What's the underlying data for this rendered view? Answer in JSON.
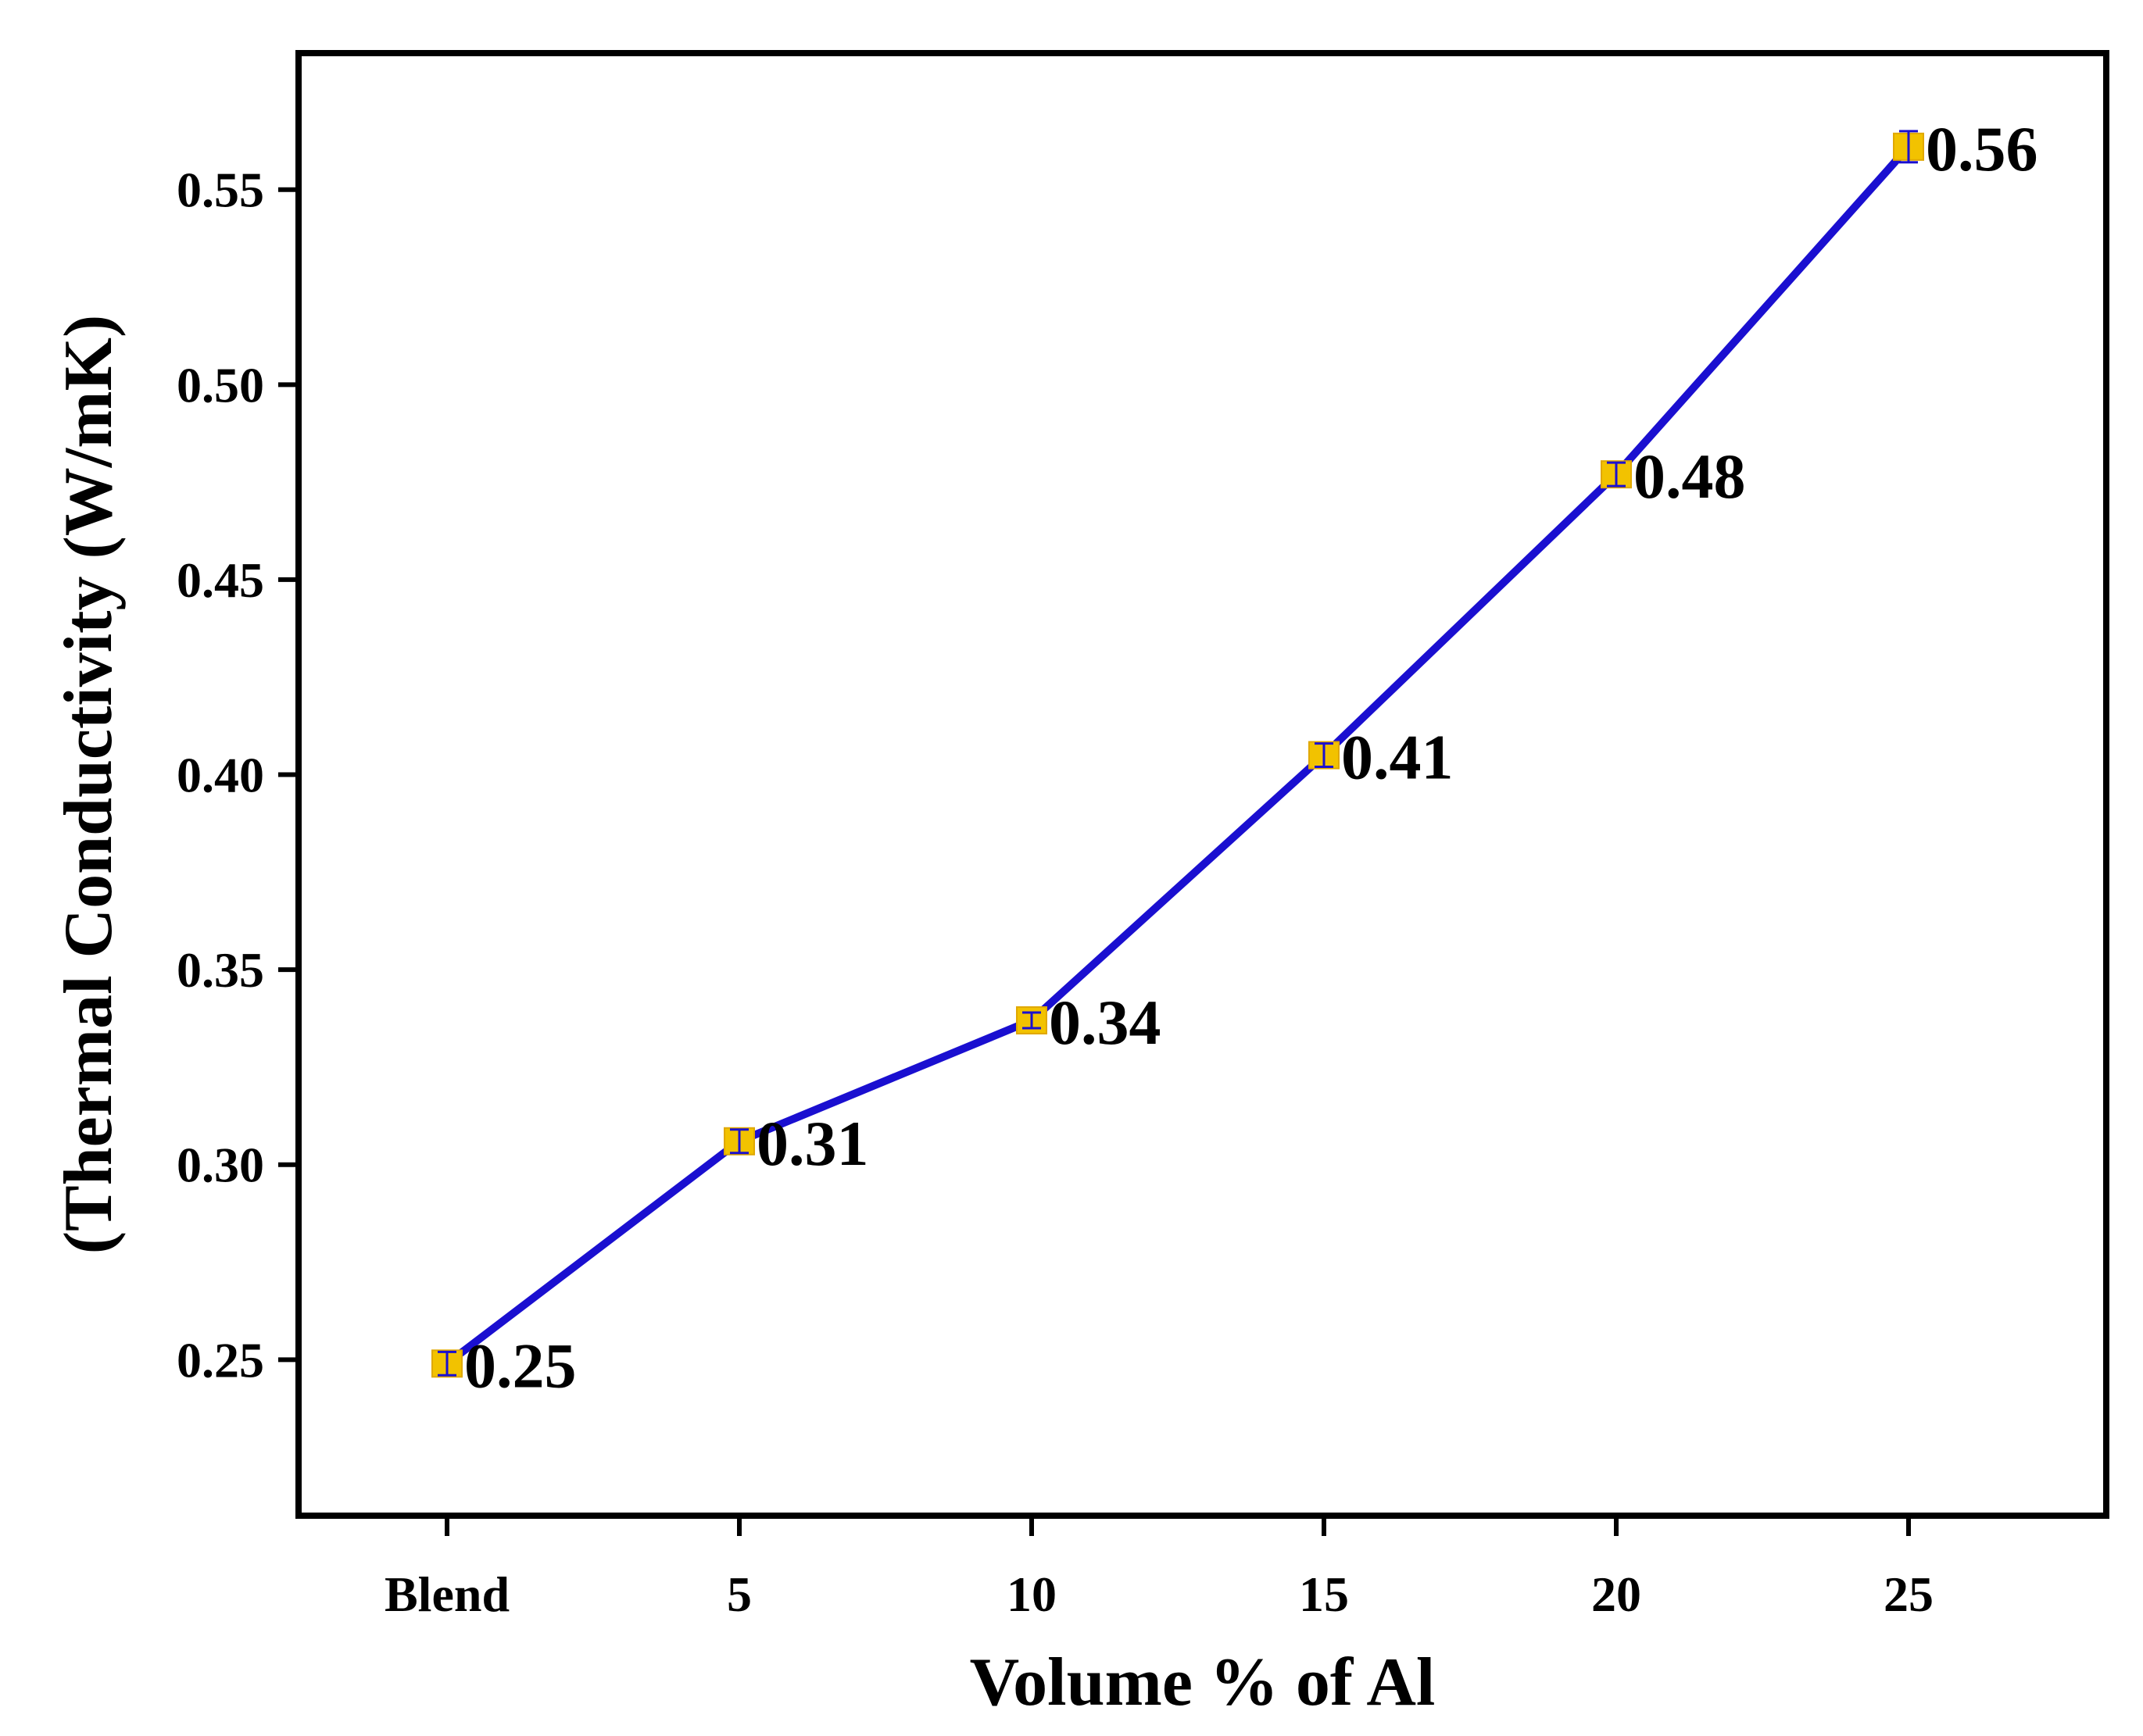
{
  "chart_data": {
    "type": "line",
    "title": "",
    "xlabel": "Volume % of Al",
    "ylabel": "(Thermal Conductivity (W/mK)",
    "categories": [
      "Blend",
      "5",
      "10",
      "15",
      "20",
      "25"
    ],
    "series": [
      {
        "name": "Thermal Conductivity",
        "values": [
          0.249,
          0.306,
          0.337,
          0.405,
          0.477,
          0.561
        ],
        "errors": [
          0.003,
          0.003,
          0.002,
          0.003,
          0.003,
          0.004
        ],
        "labels": [
          "0.25",
          "0.31",
          "0.34",
          "0.41",
          "0.48",
          "0.56"
        ]
      }
    ],
    "ylim": [
      0.21,
      0.585
    ],
    "yticks": [
      0.25,
      0.3,
      0.35,
      0.4,
      0.45,
      0.5,
      0.55
    ],
    "ytick_labels": [
      "0.25",
      "0.30",
      "0.35",
      "0.40",
      "0.45",
      "0.50",
      "0.55"
    ],
    "grid": false,
    "legend": "none",
    "colors": {
      "line": "#1a0fd0",
      "marker": "#f2c200",
      "marker_edge": "#e0a800",
      "error_bar": "#1a0fd0",
      "axis": "#000000"
    }
  }
}
